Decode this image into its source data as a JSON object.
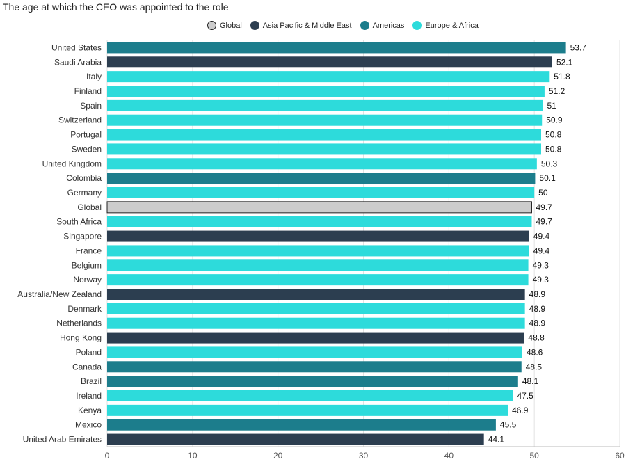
{
  "chart_data": {
    "type": "bar",
    "orientation": "horizontal",
    "title": "The age at which the CEO was appointed to the role",
    "xlabel": "",
    "ylabel": "",
    "xlim": [
      0,
      60
    ],
    "xticks": [
      "0",
      "10",
      "20",
      "30",
      "40",
      "50",
      "60"
    ],
    "grid": "vertical",
    "legend_position": "top-center",
    "legend": [
      {
        "name": "Global",
        "color": "#cccccc"
      },
      {
        "name": "Asia Pacific & Middle East",
        "color": "#2c3e50"
      },
      {
        "name": "Americas",
        "color": "#1c7d8c"
      },
      {
        "name": "Europe & Africa",
        "color": "#2ddbdb"
      }
    ],
    "categories": [
      "United States",
      "Saudi Arabia",
      "Italy",
      "Finland",
      "Spain",
      "Switzerland",
      "Portugal",
      "Sweden",
      "United Kingdom",
      "Colombia",
      "Germany",
      "Global",
      "South Africa",
      "Singapore",
      "France",
      "Belgium",
      "Norway",
      "Australia/New Zealand",
      "Denmark",
      "Netherlands",
      "Hong Kong",
      "Poland",
      "Canada",
      "Brazil",
      "Ireland",
      "Kenya",
      "Mexico",
      "United Arab Emirates"
    ],
    "values": [
      53.7,
      52.1,
      51.8,
      51.2,
      51,
      50.9,
      50.8,
      50.8,
      50.3,
      50.1,
      50,
      49.7,
      49.7,
      49.4,
      49.4,
      49.3,
      49.3,
      48.9,
      48.9,
      48.9,
      48.8,
      48.6,
      48.5,
      48.1,
      47.5,
      46.9,
      45.5,
      44.1
    ],
    "groups": [
      "Americas",
      "Asia Pacific & Middle East",
      "Europe & Africa",
      "Europe & Africa",
      "Europe & Africa",
      "Europe & Africa",
      "Europe & Africa",
      "Europe & Africa",
      "Europe & Africa",
      "Americas",
      "Europe & Africa",
      "Global",
      "Europe & Africa",
      "Asia Pacific & Middle East",
      "Europe & Africa",
      "Europe & Africa",
      "Europe & Africa",
      "Asia Pacific & Middle East",
      "Europe & Africa",
      "Europe & Africa",
      "Asia Pacific & Middle East",
      "Europe & Africa",
      "Americas",
      "Americas",
      "Europe & Africa",
      "Europe & Africa",
      "Americas",
      "Asia Pacific & Middle East"
    ]
  }
}
